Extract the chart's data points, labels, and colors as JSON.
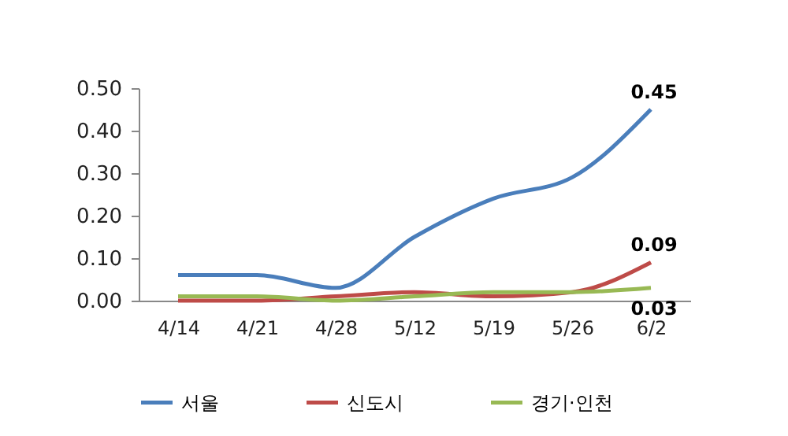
{
  "chart_data": {
    "type": "line",
    "categories": [
      "4/14",
      "4/21",
      "4/28",
      "5/12",
      "5/19",
      "5/26",
      "6/2"
    ],
    "series": [
      {
        "name": "서울",
        "color": "#4a7ebb",
        "values": [
          0.06,
          0.06,
          0.03,
          0.15,
          0.24,
          0.29,
          0.45
        ],
        "value_labels": [
          null,
          null,
          null,
          null,
          null,
          null,
          "0.45"
        ]
      },
      {
        "name": "신도시",
        "color": "#be4b48",
        "values": [
          0.0,
          0.0,
          0.01,
          0.02,
          0.01,
          0.02,
          0.09
        ],
        "value_labels": [
          null,
          null,
          null,
          null,
          null,
          null,
          "0.09"
        ]
      },
      {
        "name": "경기·인천",
        "color": "#98b954",
        "values": [
          0.01,
          0.01,
          0.0,
          0.01,
          0.02,
          0.02,
          0.03
        ],
        "value_labels": [
          null,
          null,
          null,
          null,
          null,
          null,
          "0.03"
        ]
      }
    ],
    "ylim": [
      0,
      0.5
    ],
    "yticks": [
      {
        "value": 0,
        "label": "0.00"
      },
      {
        "value": 0.1,
        "label": "0.10"
      },
      {
        "value": 0.2,
        "label": "0.20"
      },
      {
        "value": 0.3,
        "label": "0.30"
      },
      {
        "value": 0.4,
        "label": "0.40"
      },
      {
        "value": 0.5,
        "label": "0.50"
      }
    ],
    "grid": false,
    "legend": "bottom",
    "marker": "none",
    "line_style": "solid"
  }
}
